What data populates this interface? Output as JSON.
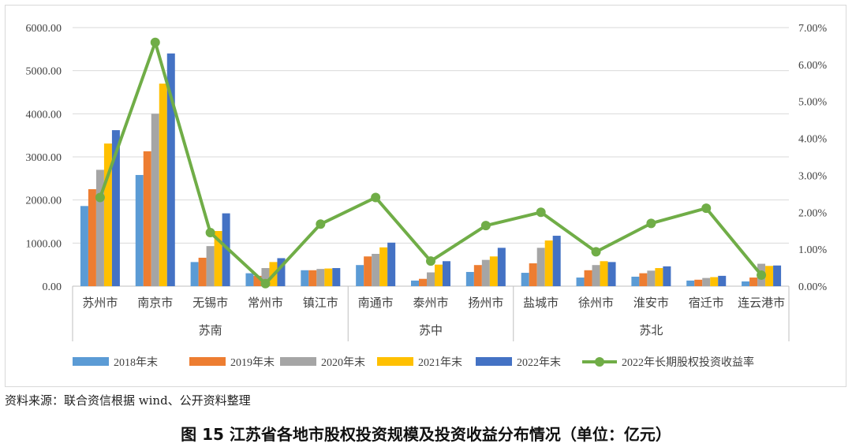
{
  "chart_data": {
    "type": "bar",
    "categories": [
      "苏州市",
      "南京市",
      "无锡市",
      "常州市",
      "镇江市",
      "南通市",
      "泰州市",
      "扬州市",
      "盐城市",
      "徐州市",
      "淮安市",
      "宿迁市",
      "连云港市"
    ],
    "groups": [
      {
        "label": "苏南",
        "members": [
          "苏州市",
          "南京市",
          "无锡市",
          "常州市",
          "镇江市"
        ]
      },
      {
        "label": "苏中",
        "members": [
          "南通市",
          "泰州市",
          "扬州市"
        ]
      },
      {
        "label": "苏北",
        "members": [
          "盐城市",
          "徐州市",
          "淮安市",
          "宿迁市",
          "连云港市"
        ]
      }
    ],
    "series": [
      {
        "name": "2018年末",
        "color": "#5b9bd5",
        "values": [
          1860,
          2580,
          560,
          300,
          370,
          490,
          130,
          330,
          310,
          200,
          220,
          130,
          110
        ]
      },
      {
        "name": "2019年末",
        "color": "#ed7d31",
        "values": [
          2250,
          3130,
          660,
          240,
          370,
          690,
          170,
          490,
          530,
          370,
          300,
          150,
          200
        ]
      },
      {
        "name": "2020年末",
        "color": "#a5a5a5",
        "values": [
          2700,
          4000,
          930,
          420,
          400,
          750,
          320,
          610,
          890,
          490,
          360,
          190,
          520
        ]
      },
      {
        "name": "2021年末",
        "color": "#ffc000",
        "values": [
          3310,
          4700,
          1280,
          560,
          410,
          900,
          500,
          690,
          1060,
          580,
          420,
          210,
          470
        ]
      },
      {
        "name": "2022年末",
        "color": "#4472c4",
        "values": [
          3620,
          5400,
          1690,
          650,
          420,
          1010,
          580,
          890,
          1170,
          560,
          460,
          240,
          480
        ]
      }
    ],
    "line_series": {
      "name": "2022年长期股权投资收益率",
      "color": "#70ad47",
      "axis": "right",
      "values_percent": [
        2.4,
        6.6,
        1.45,
        0.07,
        1.68,
        2.4,
        0.68,
        1.64,
        2.0,
        0.93,
        1.7,
        2.11,
        0.3
      ]
    },
    "y_left": {
      "min": 0,
      "max": 6000,
      "ticks": [
        0,
        1000,
        2000,
        3000,
        4000,
        5000,
        6000
      ],
      "tick_labels": [
        "0.00",
        "1000.00",
        "2000.00",
        "3000.00",
        "4000.00",
        "5000.00",
        "6000.00"
      ]
    },
    "y_right": {
      "min": 0,
      "max": 7,
      "ticks": [
        0,
        1,
        2,
        3,
        4,
        5,
        6,
        7
      ],
      "tick_labels": [
        "0.00%",
        "1.00%",
        "2.00%",
        "3.00%",
        "4.00%",
        "5.00%",
        "6.00%",
        "7.00%"
      ]
    },
    "legend_position": "bottom",
    "grid": true
  },
  "source_note": "资料来源：联合资信根据 wind、公开资料整理",
  "figure_title": "图 15  江苏省各地市股权投资规模及投资收益分布情况（单位：亿元）"
}
